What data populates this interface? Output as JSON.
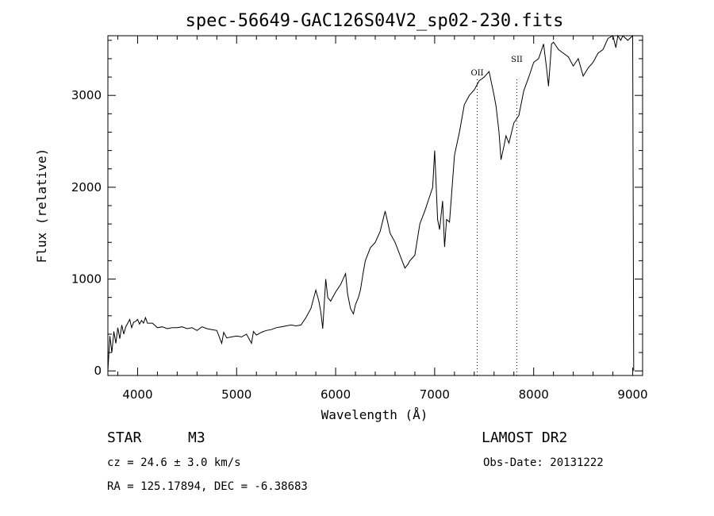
{
  "chart_data": {
    "type": "line",
    "title": "spec-56649-GAC126S04V2_sp02-230.fits",
    "xlabel": "Wavelength (Å)",
    "ylabel": "Flux (relative)",
    "xlim": [
      3700,
      9100
    ],
    "ylim": [
      -50,
      3650
    ],
    "xticks": [
      4000,
      5000,
      6000,
      7000,
      8000,
      9000
    ],
    "yticks": [
      0,
      1000,
      2000,
      3000
    ],
    "grid": false,
    "lines": [
      {
        "label": "OII",
        "wavelength": 7430
      },
      {
        "label": "SII",
        "wavelength": 7830
      }
    ],
    "series": [
      {
        "x": [
          3700,
          3720,
          3740,
          3760,
          3780,
          3800,
          3820,
          3840,
          3860,
          3880,
          3900,
          3920,
          3940,
          3960,
          3980,
          4000,
          4020,
          4040,
          4060,
          4080,
          4100,
          4150,
          4200,
          4250,
          4300,
          4350,
          4400,
          4450,
          4500,
          4550,
          4600,
          4650,
          4700,
          4750,
          4800,
          4850,
          4870,
          4900,
          4950,
          5000,
          5050,
          5100,
          5150,
          5170,
          5200,
          5250,
          5300,
          5350,
          5400,
          5450,
          5500,
          5550,
          5600,
          5650,
          5700,
          5750,
          5800,
          5830,
          5850,
          5870,
          5900,
          5920,
          5950,
          6000,
          6050,
          6100,
          6120,
          6150,
          6180,
          6200,
          6230,
          6250,
          6280,
          6300,
          6350,
          6400,
          6450,
          6500,
          6530,
          6550,
          6600,
          6650,
          6700,
          6730,
          6750,
          6800,
          6850,
          6900,
          6950,
          6980,
          7000,
          7030,
          7050,
          7080,
          7100,
          7120,
          7150,
          7200,
          7250,
          7300,
          7350,
          7400,
          7450,
          7500,
          7550,
          7600,
          7620,
          7650,
          7670,
          7700,
          7720,
          7750,
          7800,
          7850,
          7900,
          7950,
          8000,
          8050,
          8100,
          8130,
          8150,
          8180,
          8200,
          8250,
          8300,
          8350,
          8400,
          8450,
          8500,
          8550,
          8600,
          8650,
          8700,
          8750,
          8800,
          8830,
          8850,
          8880,
          8900,
          8950,
          9000,
          9010
        ],
        "y": [
          0,
          380,
          200,
          430,
          300,
          470,
          350,
          500,
          400,
          480,
          520,
          560,
          470,
          530,
          540,
          560,
          510,
          550,
          520,
          580,
          520,
          520,
          470,
          480,
          460,
          470,
          470,
          480,
          460,
          470,
          440,
          480,
          460,
          450,
          440,
          300,
          420,
          360,
          370,
          380,
          370,
          400,
          300,
          430,
          390,
          420,
          440,
          450,
          470,
          480,
          490,
          500,
          490,
          500,
          580,
          680,
          880,
          760,
          640,
          460,
          1000,
          800,
          760,
          860,
          940,
          1060,
          840,
          680,
          620,
          720,
          800,
          880,
          1080,
          1200,
          1340,
          1400,
          1520,
          1740,
          1600,
          1500,
          1400,
          1260,
          1120,
          1160,
          1200,
          1260,
          1600,
          1740,
          1900,
          2000,
          2400,
          1650,
          1540,
          1850,
          1350,
          1650,
          1620,
          2350,
          2600,
          2900,
          3000,
          3060,
          3160,
          3200,
          3260,
          3000,
          2880,
          2600,
          2300,
          2450,
          2560,
          2480,
          2700,
          2780,
          3050,
          3200,
          3360,
          3400,
          3560,
          3300,
          3100,
          3560,
          3580,
          3500,
          3460,
          3420,
          3320,
          3400,
          3210,
          3300,
          3360,
          3460,
          3500,
          3620,
          3660,
          3520,
          3700,
          3600,
          3650,
          3600,
          3650,
          0
        ]
      }
    ]
  },
  "info": {
    "class_label": "STAR",
    "subclass_label": "M3",
    "survey": "LAMOST DR2",
    "cz": "cz = 24.6 ± 3.0 km/s",
    "obs_date": "Obs-Date: 20131222",
    "radec": "RA = 125.17894, DEC =  -6.38683"
  }
}
